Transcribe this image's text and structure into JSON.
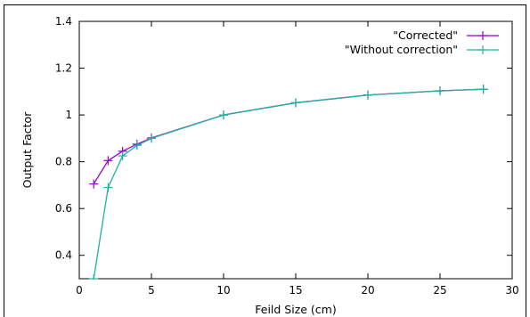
{
  "chart_data": {
    "type": "line",
    "title": "",
    "xlabel": "Feild Size (cm)",
    "ylabel": "Output Factor",
    "xlim": [
      0,
      30
    ],
    "ylim": [
      0.3,
      1.4
    ],
    "x_ticks": [
      0,
      5,
      10,
      15,
      20,
      25,
      30
    ],
    "y_ticks": [
      0.4,
      0.6,
      0.8,
      1,
      1.2,
      1.4
    ],
    "grid": false,
    "legend": "top-right",
    "series": [
      {
        "name": "\"Corrected\"",
        "color": "#9400d3",
        "marker": "plus",
        "x": [
          1,
          2,
          3,
          4,
          5,
          10,
          15,
          20,
          25,
          28
        ],
        "y": [
          0.705,
          0.805,
          0.845,
          0.875,
          0.902,
          1.0,
          1.052,
          1.085,
          1.103,
          1.11
        ]
      },
      {
        "name": "\"Without correction\"",
        "color": "#20b2a0",
        "marker": "plus",
        "x": [
          1,
          2,
          3,
          4,
          5,
          10,
          15,
          20,
          25,
          28
        ],
        "y": [
          0.3,
          0.69,
          0.825,
          0.87,
          0.9,
          1.0,
          1.052,
          1.085,
          1.103,
          1.11
        ]
      }
    ]
  }
}
